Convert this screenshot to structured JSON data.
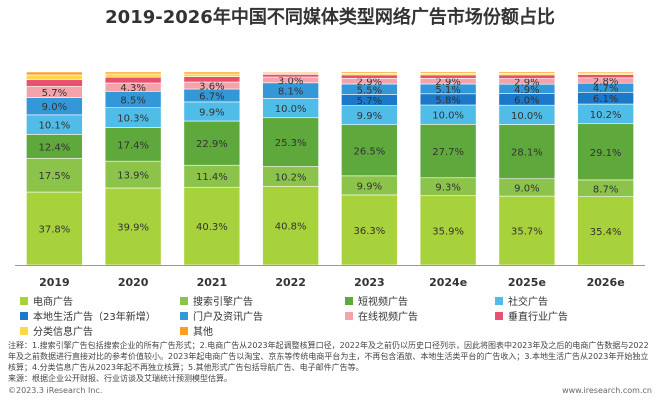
{
  "chart_data": {
    "type": "stacked_bar_percent",
    "title": "2019-2026年中国不同媒体类型网络广告市场份额占比",
    "categories": [
      "2019",
      "2020",
      "2021",
      "2022",
      "2023",
      "2024e",
      "2025e",
      "2026e"
    ],
    "ylim": [
      0,
      100
    ],
    "series": [
      {
        "name": "电商广告",
        "color": "#a8d23c",
        "values": [
          37.8,
          39.9,
          40.3,
          40.8,
          36.3,
          35.9,
          35.7,
          35.4
        ],
        "value_labels": [
          "37.8%",
          "39.9%",
          "40.3%",
          "40.8%",
          "36.3%",
          "35.9%",
          "35.7%",
          "35.4%"
        ]
      },
      {
        "name": "搜索引擎广告",
        "color": "#8cc34a",
        "values": [
          17.5,
          13.9,
          11.4,
          10.2,
          9.9,
          9.3,
          9.0,
          8.7
        ],
        "value_labels": [
          "17.5%",
          "13.9%",
          "11.4%",
          "10.2%",
          "9.9%",
          "9.3%",
          "9.0%",
          "8.7%"
        ]
      },
      {
        "name": "短视频广告",
        "color": "#5fa83c",
        "values": [
          12.4,
          17.4,
          22.9,
          25.3,
          26.5,
          27.7,
          28.1,
          29.1
        ],
        "value_labels": [
          "12.4%",
          "17.4%",
          "22.9%",
          "25.3%",
          "26.5%",
          "27.7%",
          "28.1%",
          "29.1%"
        ]
      },
      {
        "name": "社交广告",
        "color": "#4fbde8",
        "values": [
          10.1,
          10.3,
          9.9,
          10.0,
          9.9,
          10.0,
          10.0,
          10.2
        ],
        "value_labels": [
          "10.1%",
          "10.3%",
          "9.9%",
          "10.0%",
          "9.9%",
          "10.0%",
          "10.0%",
          "10.2%"
        ]
      },
      {
        "name": "本地生活广告（23年新增）",
        "color": "#1c78c8",
        "values": [
          null,
          null,
          null,
          null,
          5.7,
          5.8,
          6.0,
          6.1
        ],
        "value_labels": [
          null,
          null,
          null,
          null,
          "5.7%",
          "5.8%",
          "6.0%",
          "6.1%"
        ]
      },
      {
        "name": "门户及资讯广告",
        "color": "#3498d8",
        "values": [
          9.0,
          8.5,
          6.7,
          8.1,
          5.5,
          5.1,
          4.9,
          4.7
        ],
        "value_labels": [
          "9.0%",
          "8.5%",
          "6.7%",
          "8.1%",
          "5.5%",
          "5.1%",
          "4.9%",
          "4.7%"
        ]
      },
      {
        "name": "在线视频广告",
        "color": "#f4a3ab",
        "values": [
          5.7,
          4.3,
          3.6,
          3.0,
          2.9,
          2.9,
          2.9,
          2.8
        ],
        "value_labels": [
          "5.7%",
          "4.3%",
          "3.6%",
          "3.0%",
          "2.9%",
          "2.9%",
          "2.9%",
          "2.8%"
        ]
      },
      {
        "name": "垂直行业广告",
        "color": "#e8506e",
        "values": [
          3.5,
          3.0,
          2.8,
          1.4,
          1.8,
          1.8,
          1.9,
          1.6
        ]
      },
      {
        "name": "分类信息广告",
        "color": "#ffd84a",
        "values": [
          2.5,
          1.7,
          1.4,
          0.7,
          0.8,
          0.8,
          0.8,
          0.8
        ]
      },
      {
        "name": "其他",
        "color": "#ff9c22",
        "values": [
          1.5,
          1.0,
          1.0,
          0.5,
          0.7,
          0.7,
          0.7,
          0.6
        ]
      }
    ]
  },
  "notes": "注释：1.搜索引擎广告包括搜索企业的所有广告形式；2.电商广告从2023年起调整核算口径，2022年及之前仍以历史口径列示，因此将图表中2023年及之后的电商广告数据与2022年及之前数据进行直接对比的参考价值较小。2023年起电商广告以淘宝、京东等传统电商平台为主，不再包含酒旅、本地生活类平台的广告收入；3.本地生活广告从2023年开始独立核算；4.分类信息广告从2023年起不再独立核算；5.其他形式广告包括导航广告、电子邮件广告等。",
  "source": "来源：根据企业公开财报、行业访谈及艾瑞统计预测模型估算。",
  "footer": {
    "copyright": "©2023.3 iResearch Inc.",
    "website": "www.iresearch.com.cn"
  }
}
